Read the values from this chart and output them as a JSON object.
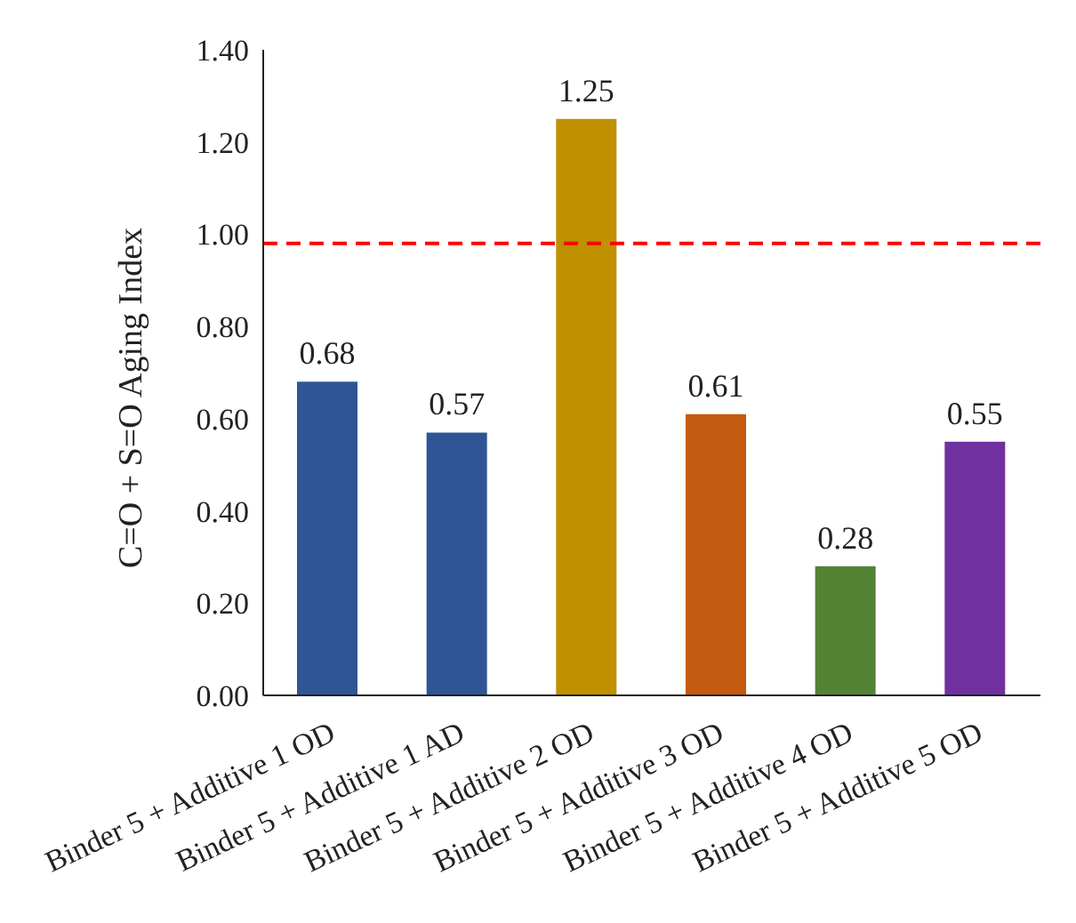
{
  "chart_data": {
    "type": "bar",
    "ylabel": "C=O + S=O Aging Index",
    "categories": [
      "Binder 5 + Additive 1 OD",
      "Binder 5 + Additive 1 AD",
      "Binder 5 + Additive 2 OD",
      "Binder 5 + Additive 3 OD",
      "Binder 5 + Additive 4 OD",
      "Binder 5 + Additive 5 OD"
    ],
    "values": [
      0.68,
      0.57,
      1.25,
      0.61,
      0.28,
      0.55
    ],
    "colors": [
      "#2f5597",
      "#2f5597",
      "#bf9000",
      "#c55a11",
      "#548235",
      "#7030a0"
    ],
    "ylim": [
      0,
      1.4
    ],
    "yticks": [
      {
        "value": 0,
        "label": "0.00"
      },
      {
        "value": 0.2,
        "label": "0.20"
      },
      {
        "value": 0.4,
        "label": "0.40"
      },
      {
        "value": 0.6,
        "label": "0.60"
      },
      {
        "value": 0.8,
        "label": "0.80"
      },
      {
        "value": 1.0,
        "label": "1.00"
      },
      {
        "value": 1.2,
        "label": "1.20"
      },
      {
        "value": 1.4,
        "label": "1.40"
      }
    ],
    "ref_lines": [
      {
        "axis": "y",
        "value": 0.98,
        "color": "#ff0000",
        "line_style": "dashed"
      }
    ],
    "data_labels": true,
    "grid": false,
    "legend": false
  }
}
